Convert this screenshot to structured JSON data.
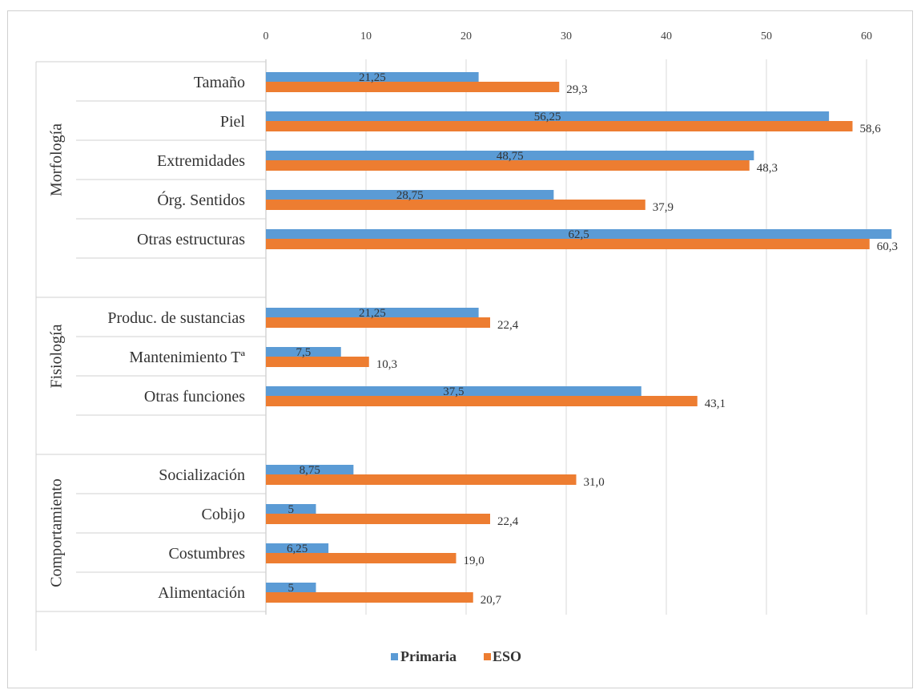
{
  "chart_data": {
    "type": "bar",
    "orientation": "horizontal",
    "xlim": [
      0,
      63
    ],
    "x_ticks": [
      0,
      10,
      20,
      30,
      40,
      50,
      60
    ],
    "x_axis_position": "top",
    "grid": true,
    "legend_position": "bottom",
    "colors": {
      "Primaria": "#5b9bd5",
      "ESO": "#ed7d31"
    },
    "groups": [
      {
        "name": "Morfología",
        "categories": [
          "Tamaño",
          "Piel",
          "Extremidades",
          "Órg. Sentidos",
          "Otras estructuras"
        ]
      },
      {
        "name": "Fisiología",
        "categories": [
          "Produc. de sustancias",
          "Mantenimiento Tª",
          "Otras funciones"
        ]
      },
      {
        "name": "Comportamiento",
        "categories": [
          "Socialización",
          "Cobijo",
          "Costumbres",
          "Alimentación"
        ]
      }
    ],
    "series": [
      {
        "name": "Primaria",
        "values": [
          21.25,
          56.25,
          48.75,
          28.75,
          62.5,
          21.25,
          7.5,
          37.5,
          8.75,
          5,
          6.25,
          5
        ],
        "labels": [
          "21,25",
          "56,25",
          "48,75",
          "28,75",
          "62,5",
          "21,25",
          "7,5",
          "37,5",
          "8,75",
          "5",
          "6,25",
          "5"
        ]
      },
      {
        "name": "ESO",
        "values": [
          29.3,
          58.6,
          48.3,
          37.9,
          60.3,
          22.4,
          10.3,
          43.1,
          31.0,
          22.4,
          19.0,
          20.7
        ],
        "labels": [
          "29,3",
          "58,6",
          "48,3",
          "37,9",
          "60,3",
          "22,4",
          "10,3",
          "43,1",
          "31,0",
          "22,4",
          "19,0",
          "20,7"
        ]
      }
    ]
  }
}
